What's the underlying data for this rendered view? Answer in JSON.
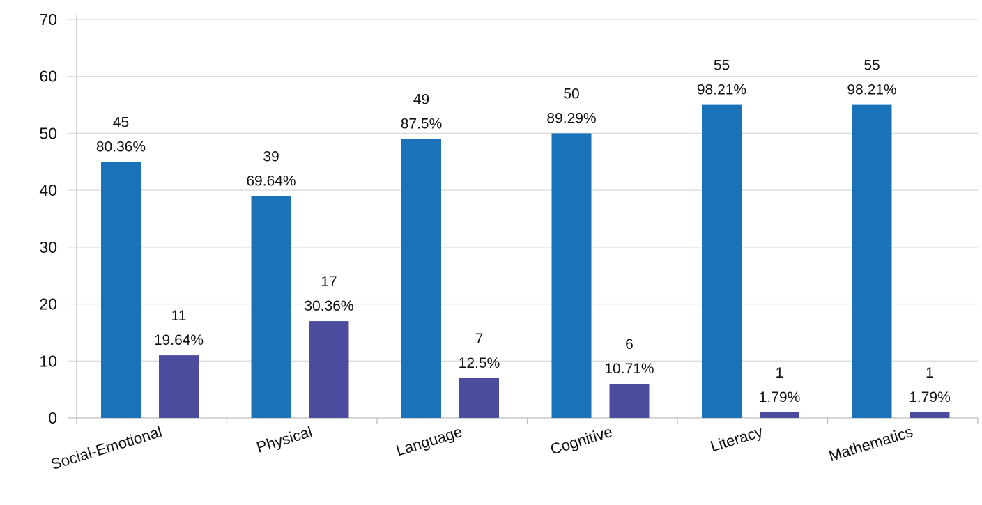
{
  "chart_data": {
    "type": "bar",
    "title": "",
    "xlabel": "",
    "ylabel": "",
    "ylim": [
      0,
      70
    ],
    "yticks": [
      0,
      10,
      20,
      30,
      40,
      50,
      60,
      70
    ],
    "grid": true,
    "legend": "none",
    "categories": [
      "Social-Emotional",
      "Physical",
      "Language",
      "Cognitive",
      "Literacy",
      "Mathematics"
    ],
    "series": [
      {
        "color": "#1a72b8",
        "values": [
          45,
          39,
          49,
          50,
          55,
          55
        ],
        "percent_labels": [
          "80.36%",
          "69.64%",
          "87.5%",
          "89.29%",
          "98.21%",
          "98.21%"
        ]
      },
      {
        "color": "#4b4c9e",
        "values": [
          11,
          17,
          7,
          6,
          1,
          1
        ],
        "percent_labels": [
          "19.64%",
          "30.36%",
          "12.5%",
          "10.71%",
          "1.79%",
          "1.79%"
        ]
      }
    ]
  }
}
